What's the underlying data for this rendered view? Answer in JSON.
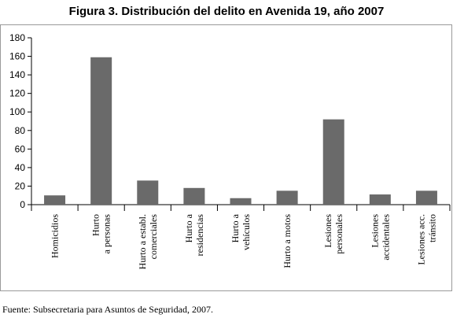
{
  "chart_data": {
    "type": "bar",
    "title": "Figura 3. Distribución del delito en Avenida 19, año 2007",
    "categories": [
      [
        "Homicidios"
      ],
      [
        "Hurto",
        "a personas"
      ],
      [
        "Hurto a establ.",
        "comerciales"
      ],
      [
        "Hurto a",
        "residencias"
      ],
      [
        "Hurto a",
        "vehículos"
      ],
      [
        "Hurto a motos"
      ],
      [
        "Lesiones",
        "personales"
      ],
      [
        "Lesiones",
        "accidentales"
      ],
      [
        "Lesiones acc.",
        "tránsito"
      ]
    ],
    "values": [
      10,
      159,
      26,
      18,
      7,
      15,
      92,
      11,
      15
    ],
    "ylim": [
      0,
      180
    ],
    "yticks": [
      "0",
      "20",
      "40",
      "60",
      "80",
      "100",
      "120",
      "140",
      "160",
      "180"
    ],
    "bar_color": "#6a6a6a",
    "source": "Fuente: Subsecretaria para Asuntos de Seguridad, 2007."
  }
}
